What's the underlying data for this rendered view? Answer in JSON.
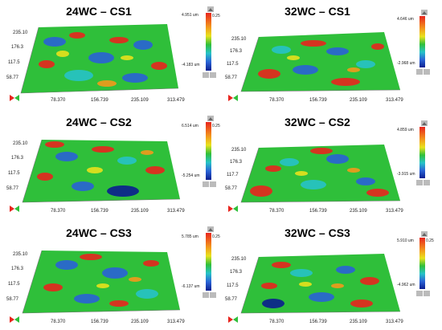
{
  "panels": [
    {
      "title": "24WC – CS1",
      "ymax": "4.951 um",
      "ymin": "-4.183 um",
      "scale_right": "0.25",
      "yticks": [
        "235.10",
        "176.3",
        "117.5",
        "58.77"
      ],
      "xticks": [
        "78.370",
        "156.739",
        "235.109",
        "313.479"
      ]
    },
    {
      "title": "32WC – CS1",
      "ymax": "4.646 um",
      "ymin": "-2.968 um",
      "scale_right": "0.25",
      "yticks": [
        "235.10",
        "176.3",
        "117.5",
        "58.77"
      ],
      "xticks": [
        "78.370",
        "156.739",
        "235.109",
        "313.479"
      ]
    },
    {
      "title": "24WC – CS2",
      "ymax": "6.514 um",
      "ymin": "-5.254 um",
      "scale_right": "0.25",
      "yticks": [
        "235.10",
        "176.3",
        "117.5",
        "58.77"
      ],
      "xticks": [
        "78.370",
        "156.739",
        "235.109",
        "313.479"
      ]
    },
    {
      "title": "32WC – CS2",
      "ymax": "4.859 um",
      "ymin": "-3.915 um",
      "scale_right": "0.25",
      "yticks": [
        "235.10",
        "176.3",
        "117.7",
        "58.77"
      ],
      "xticks": [
        "78.370",
        "156.739",
        "235.109",
        "313.479"
      ]
    },
    {
      "title": "24WC – CS3",
      "ymax": "5.785 um",
      "ymin": "-6.137 um",
      "scale_right": "0.25",
      "yticks": [
        "235.10",
        "176.3",
        "117.5",
        "58.77"
      ],
      "xticks": [
        "78.370",
        "156.739",
        "235.109",
        "313.479"
      ]
    },
    {
      "title": "32WC – CS3",
      "ymax": "5.910 um",
      "ymin": "-4.962 um",
      "scale_right": "0.25",
      "yticks": [
        "235.10",
        "176.3",
        "117.5",
        "58.77"
      ],
      "xticks": [
        "78.370",
        "156.739",
        "235.109",
        "313.479"
      ]
    }
  ],
  "colors": {
    "red": "#e8251e",
    "orange": "#f39a1c",
    "yellow": "#e8e21c",
    "green": "#2fbf3a",
    "cyan": "#27c3c7",
    "blue": "#2a63d6",
    "navy": "#0b1f8f"
  }
}
